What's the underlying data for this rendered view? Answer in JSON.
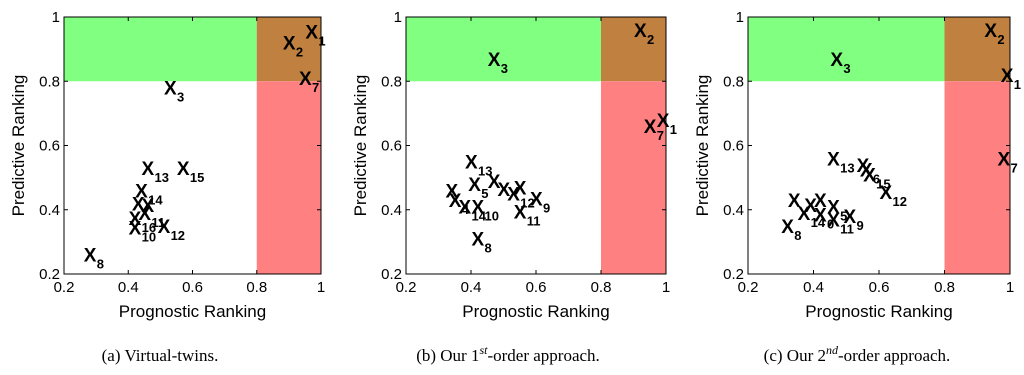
{
  "chart_data": [
    {
      "type": "scatter",
      "caption": "(a) Virtual-twins.",
      "xlabel": "Prognostic Ranking",
      "ylabel": "Predictive Ranking",
      "xlim": [
        0.2,
        1
      ],
      "ylim": [
        0.2,
        1
      ],
      "xticks": [
        "0.2",
        "0.4",
        "0.6",
        "0.8",
        "1"
      ],
      "yticks": [
        "0.2",
        "0.4",
        "0.6",
        "0.8",
        "1"
      ],
      "regions": [
        {
          "name": "green",
          "x": [
            0.2,
            0.8
          ],
          "y": [
            0.8,
            1.0
          ],
          "color": "#80ff80"
        },
        {
          "name": "brown",
          "x": [
            0.8,
            1.0
          ],
          "y": [
            0.8,
            1.0
          ],
          "color": "#c08040"
        },
        {
          "name": "red",
          "x": [
            0.8,
            1.0
          ],
          "y": [
            0.2,
            0.8
          ],
          "color": "#ff8080"
        }
      ],
      "points": [
        {
          "label": "X",
          "sub": "1",
          "x": 0.97,
          "y": 0.955
        },
        {
          "label": "X",
          "sub": "2",
          "x": 0.9,
          "y": 0.92
        },
        {
          "label": "X",
          "sub": "3",
          "x": 0.53,
          "y": 0.78
        },
        {
          "label": "X",
          "sub": "7",
          "x": 0.95,
          "y": 0.81
        },
        {
          "label": "X",
          "sub": "15",
          "x": 0.57,
          "y": 0.53
        },
        {
          "label": "X",
          "sub": "13",
          "x": 0.46,
          "y": 0.53
        },
        {
          "label": "X",
          "sub": "14",
          "x": 0.44,
          "y": 0.46
        },
        {
          "label": "X",
          "sub": "",
          "x": 0.43,
          "y": 0.42
        },
        {
          "label": "X",
          "sub": "",
          "x": 0.46,
          "y": 0.415
        },
        {
          "label": "X",
          "sub": "11",
          "x": 0.45,
          "y": 0.39
        },
        {
          "label": "X",
          "sub": "16",
          "x": 0.42,
          "y": 0.375
        },
        {
          "label": "X",
          "sub": "10",
          "x": 0.42,
          "y": 0.345
        },
        {
          "label": "X",
          "sub": "12",
          "x": 0.51,
          "y": 0.35
        },
        {
          "label": "X",
          "sub": "8",
          "x": 0.28,
          "y": 0.26
        }
      ]
    },
    {
      "type": "scatter",
      "caption_pre": "(b) Our 1",
      "caption_sup": "st",
      "caption_post": "-order approach.",
      "xlabel": "Prognostic Ranking",
      "ylabel": "Predictive Ranking",
      "xlim": [
        0.2,
        1
      ],
      "ylim": [
        0.2,
        1
      ],
      "xticks": [
        "0.2",
        "0.4",
        "0.6",
        "0.8",
        "1"
      ],
      "yticks": [
        "0.2",
        "0.4",
        "0.6",
        "0.8",
        "1"
      ],
      "regions": [
        {
          "name": "green",
          "x": [
            0.2,
            0.8
          ],
          "y": [
            0.8,
            1.0
          ],
          "color": "#80ff80"
        },
        {
          "name": "brown",
          "x": [
            0.8,
            1.0
          ],
          "y": [
            0.8,
            1.0
          ],
          "color": "#c08040"
        },
        {
          "name": "red",
          "x": [
            0.8,
            1.0
          ],
          "y": [
            0.2,
            0.8
          ],
          "color": "#ff8080"
        }
      ],
      "points": [
        {
          "label": "X",
          "sub": "2",
          "x": 0.92,
          "y": 0.96
        },
        {
          "label": "X",
          "sub": "3",
          "x": 0.47,
          "y": 0.87
        },
        {
          "label": "X",
          "sub": "1",
          "x": 0.99,
          "y": 0.68
        },
        {
          "label": "X",
          "sub": "7",
          "x": 0.95,
          "y": 0.66
        },
        {
          "label": "X",
          "sub": "13",
          "x": 0.4,
          "y": 0.55
        },
        {
          "label": "X",
          "sub": "",
          "x": 0.47,
          "y": 0.49
        },
        {
          "label": "X",
          "sub": "5",
          "x": 0.41,
          "y": 0.48
        },
        {
          "label": "X",
          "sub": "",
          "x": 0.34,
          "y": 0.46
        },
        {
          "label": "X",
          "sub": "4",
          "x": 0.35,
          "y": 0.43
        },
        {
          "label": "X",
          "sub": "",
          "x": 0.5,
          "y": 0.465
        },
        {
          "label": "X",
          "sub": "",
          "x": 0.55,
          "y": 0.47
        },
        {
          "label": "X",
          "sub": "12",
          "x": 0.53,
          "y": 0.45
        },
        {
          "label": "X",
          "sub": "9",
          "x": 0.6,
          "y": 0.435
        },
        {
          "label": "X",
          "sub": "14",
          "x": 0.38,
          "y": 0.41
        },
        {
          "label": "X",
          "sub": "10",
          "x": 0.42,
          "y": 0.41
        },
        {
          "label": "X",
          "sub": "11",
          "x": 0.55,
          "y": 0.395
        },
        {
          "label": "X",
          "sub": "8",
          "x": 0.42,
          "y": 0.31
        }
      ]
    },
    {
      "type": "scatter",
      "caption_pre": "(c) Our 2",
      "caption_sup": "nd",
      "caption_post": "-order approach.",
      "xlabel": "Prognostic Ranking",
      "ylabel": "Predictive Ranking",
      "xlim": [
        0.2,
        1
      ],
      "ylim": [
        0.2,
        1
      ],
      "xticks": [
        "0.2",
        "0.4",
        "0.6",
        "0.8",
        "1"
      ],
      "yticks": [
        "0.2",
        "0.4",
        "0.6",
        "0.8",
        "1"
      ],
      "regions": [
        {
          "name": "green",
          "x": [
            0.2,
            0.8
          ],
          "y": [
            0.8,
            1.0
          ],
          "color": "#80ff80"
        },
        {
          "name": "brown",
          "x": [
            0.8,
            1.0
          ],
          "y": [
            0.8,
            1.0
          ],
          "color": "#c08040"
        },
        {
          "name": "red",
          "x": [
            0.8,
            1.0
          ],
          "y": [
            0.2,
            0.8
          ],
          "color": "#ff8080"
        }
      ],
      "points": [
        {
          "label": "X",
          "sub": "2",
          "x": 0.94,
          "y": 0.96
        },
        {
          "label": "X",
          "sub": "3",
          "x": 0.47,
          "y": 0.87
        },
        {
          "label": "X",
          "sub": "1",
          "x": 0.99,
          "y": 0.82
        },
        {
          "label": "X",
          "sub": "7",
          "x": 0.98,
          "y": 0.56
        },
        {
          "label": "X",
          "sub": "13",
          "x": 0.46,
          "y": 0.56
        },
        {
          "label": "X",
          "sub": "",
          "x": 0.55,
          "y": 0.54
        },
        {
          "label": "X",
          "sub": "6",
          "x": 0.56,
          "y": 0.525
        },
        {
          "label": "X",
          "sub": "15",
          "x": 0.57,
          "y": 0.51
        },
        {
          "label": "X",
          "sub": "12",
          "x": 0.62,
          "y": 0.455
        },
        {
          "label": "X",
          "sub": "",
          "x": 0.34,
          "y": 0.43
        },
        {
          "label": "X",
          "sub": "",
          "x": 0.39,
          "y": 0.415
        },
        {
          "label": "X",
          "sub": "",
          "x": 0.42,
          "y": 0.43
        },
        {
          "label": "X",
          "sub": "5",
          "x": 0.46,
          "y": 0.41
        },
        {
          "label": "X",
          "sub": "14",
          "x": 0.37,
          "y": 0.39
        },
        {
          "label": "X",
          "sub": "0",
          "x": 0.42,
          "y": 0.385
        },
        {
          "label": "X",
          "sub": "11",
          "x": 0.46,
          "y": 0.37
        },
        {
          "label": "X",
          "sub": "9",
          "x": 0.51,
          "y": 0.38
        },
        {
          "label": "X",
          "sub": "8",
          "x": 0.32,
          "y": 0.35
        }
      ]
    }
  ]
}
